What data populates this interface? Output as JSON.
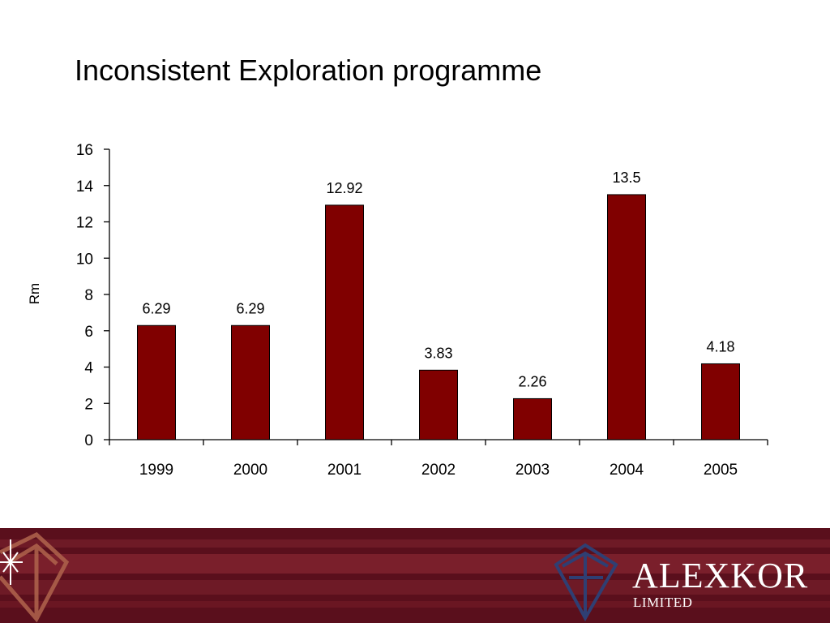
{
  "slide": {
    "title": "Inconsistent Exploration programme"
  },
  "chart_data": {
    "type": "bar",
    "title": "Inconsistent Exploration programme",
    "ylabel": "Rm",
    "xlabel": "",
    "categories": [
      "1999",
      "2000",
      "2001",
      "2002",
      "2003",
      "2004",
      "2005"
    ],
    "values": [
      6.29,
      6.29,
      12.92,
      3.83,
      2.26,
      13.5,
      4.18
    ],
    "data_labels": [
      "6.29",
      "6.29",
      "12.92",
      "3.83",
      "2.26",
      "13.5",
      "4.18"
    ],
    "ylim": [
      0,
      16
    ],
    "yticks": [
      0,
      2,
      4,
      6,
      8,
      10,
      12,
      14,
      16
    ],
    "grid": false,
    "legend": "none",
    "bar_color": "#800000"
  },
  "footer": {
    "brand": "ALEXKOR",
    "subtitle": "LIMITED",
    "background_color": "#5a0f1c",
    "logo_icon": "diamond-logo"
  }
}
